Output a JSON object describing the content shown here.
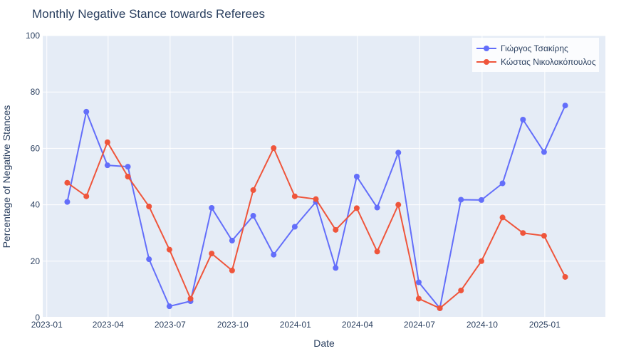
{
  "chart_data": {
    "type": "line",
    "title": "Monthly Negative Stance towards Referees",
    "xlabel": "Date",
    "ylabel": "Percentage of Negative Stances",
    "ylim": [
      0,
      100
    ],
    "xlim": [
      "2022-12-26",
      "2025-03-31"
    ],
    "x_tick_labels": [
      "2023-01",
      "2023-04",
      "2023-07",
      "2023-10",
      "2024-01",
      "2024-04",
      "2024-07",
      "2024-10",
      "2025-01"
    ],
    "y_ticks": [
      0,
      20,
      40,
      60,
      80,
      100
    ],
    "grid": true,
    "legend_position": "top-right",
    "x": [
      "2023-01-31",
      "2023-02-28",
      "2023-03-31",
      "2023-04-30",
      "2023-05-31",
      "2023-06-30",
      "2023-07-31",
      "2023-08-31",
      "2023-09-30",
      "2023-10-31",
      "2023-11-30",
      "2023-12-31",
      "2024-01-31",
      "2024-02-29",
      "2024-03-31",
      "2024-04-30",
      "2024-05-31",
      "2024-06-30",
      "2024-07-31",
      "2024-08-31",
      "2024-09-30",
      "2024-10-31",
      "2024-11-30",
      "2024-12-31",
      "2025-01-31"
    ],
    "series": [
      {
        "name": "Γιώργος Τσακίρης",
        "color": "#636efa",
        "values": [
          41,
          73,
          54,
          53.5,
          20.7,
          4,
          5.8,
          38.9,
          27.3,
          36.1,
          22.3,
          32.2,
          41,
          17.6,
          50,
          39,
          58.5,
          12.5,
          3.3,
          41.8,
          41.7,
          47.6,
          70.2,
          58.7,
          75.2
        ]
      },
      {
        "name": "Κώστας Νικολακόπουλος",
        "color": "#ef553b",
        "values": [
          47.8,
          43,
          62.2,
          50,
          39.4,
          24.1,
          6.7,
          22.7,
          16.7,
          45.2,
          60.1,
          43,
          42,
          31.1,
          38.8,
          23.4,
          40,
          6.7,
          3.3,
          9.6,
          20,
          35.5,
          30,
          29,
          14.4
        ]
      }
    ]
  }
}
